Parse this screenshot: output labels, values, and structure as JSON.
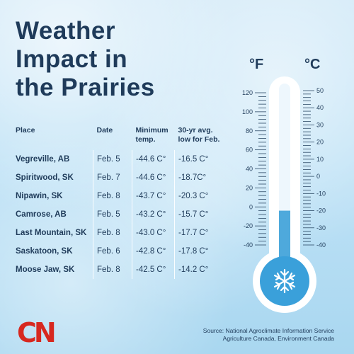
{
  "title": "Weather\nImpact in\nthe Prairies",
  "table": {
    "headers": {
      "place": "Place",
      "date": "Date",
      "min": "Minimum\ntemp.",
      "avg": "30-yr avg.\nlow for Feb."
    },
    "rows": [
      {
        "place": "Vegreville, AB",
        "date": "Feb. 5",
        "min": "-44.6 C°",
        "avg": "-16.5 C°"
      },
      {
        "place": "Spiritwood, SK",
        "date": "Feb. 7",
        "min": "-44.6 C°",
        "avg": "-18.7C°"
      },
      {
        "place": "Nipawin, SK",
        "date": "Feb. 8",
        "min": "-43.7 C°",
        "avg": "-20.3 C°"
      },
      {
        "place": "Camrose, AB",
        "date": "Feb. 5",
        "min": "-43.2 C°",
        "avg": "-15.7 C°"
      },
      {
        "place": "Last Mountain, SK",
        "date": "Feb. 8",
        "min": "-43.0 C°",
        "avg": "-17.7 C°"
      },
      {
        "place": "Saskatoon, SK",
        "date": "Feb. 6",
        "min": "-42.8 C°",
        "avg": "-17.8 C°"
      },
      {
        "place": "Moose Jaw, SK",
        "date": "Feb. 8",
        "min": "-42.5 C°",
        "avg": "-14.2 C°"
      }
    ]
  },
  "thermometer": {
    "unit_f": "°F",
    "unit_c": "°C",
    "f_labels": [
      "120",
      "100",
      "80",
      "60",
      "40",
      "20",
      "0",
      "-20",
      "-40"
    ],
    "c_labels": [
      "50",
      "40",
      "30",
      "20",
      "10",
      "0",
      "-10",
      "-20",
      "-30",
      "-40"
    ],
    "mercury_celsius": -20,
    "icon": "snowflake-icon",
    "colors": {
      "mercury": "#4ea9dc",
      "bulb": "#3aa0da",
      "tube": "#ffffff"
    }
  },
  "logo": "CN",
  "source": "Source: National Agroclimate Information Service\nAgriculture Canada, Environment Canada"
}
